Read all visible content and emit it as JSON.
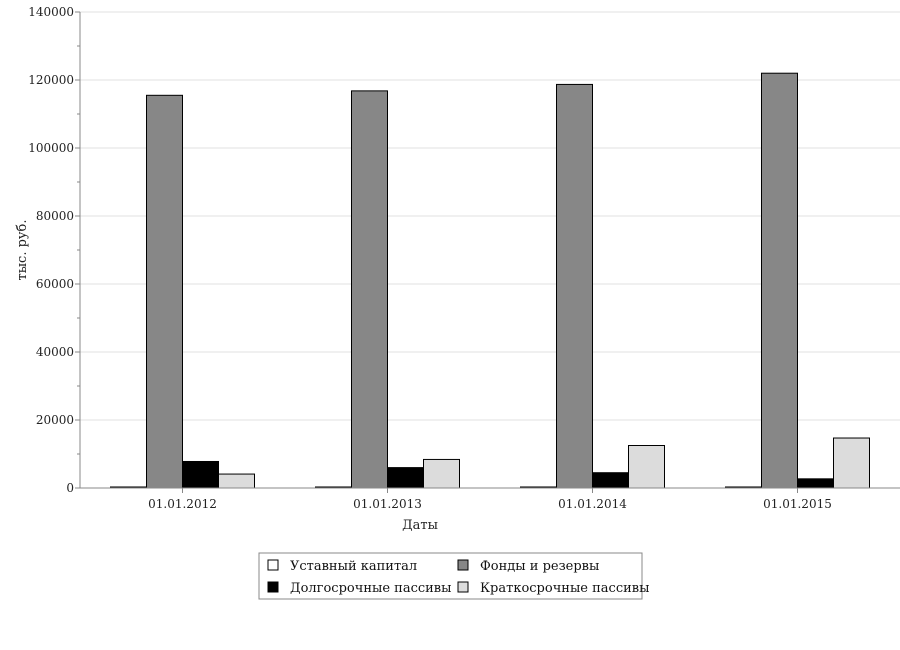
{
  "chart_data": {
    "type": "bar",
    "categories": [
      "01.01.2012",
      "01.01.2013",
      "01.01.2014",
      "01.01.2015"
    ],
    "series": [
      {
        "name": "Уставный капитал",
        "values": [
          300,
          300,
          300,
          300
        ],
        "color": "#ffffff"
      },
      {
        "name": "Фонды и резервы",
        "values": [
          115500,
          116800,
          118700,
          122000
        ],
        "color": "#878787"
      },
      {
        "name": "Долгосрочные пассивы",
        "values": [
          7800,
          6000,
          4500,
          2700
        ],
        "color": "#000000"
      },
      {
        "name": "Краткосрочные пассивы",
        "values": [
          4100,
          8400,
          12500,
          14700
        ],
        "color": "#dcdcdc"
      }
    ],
    "xlabel": "Даты",
    "ylabel": "тыс. руб.",
    "ylim": [
      0,
      140000
    ],
    "yticks": [
      "0",
      "20000",
      "40000",
      "60000",
      "80000",
      "100000",
      "120000",
      "140000"
    ],
    "grid": true,
    "legend_position": "bottom"
  }
}
